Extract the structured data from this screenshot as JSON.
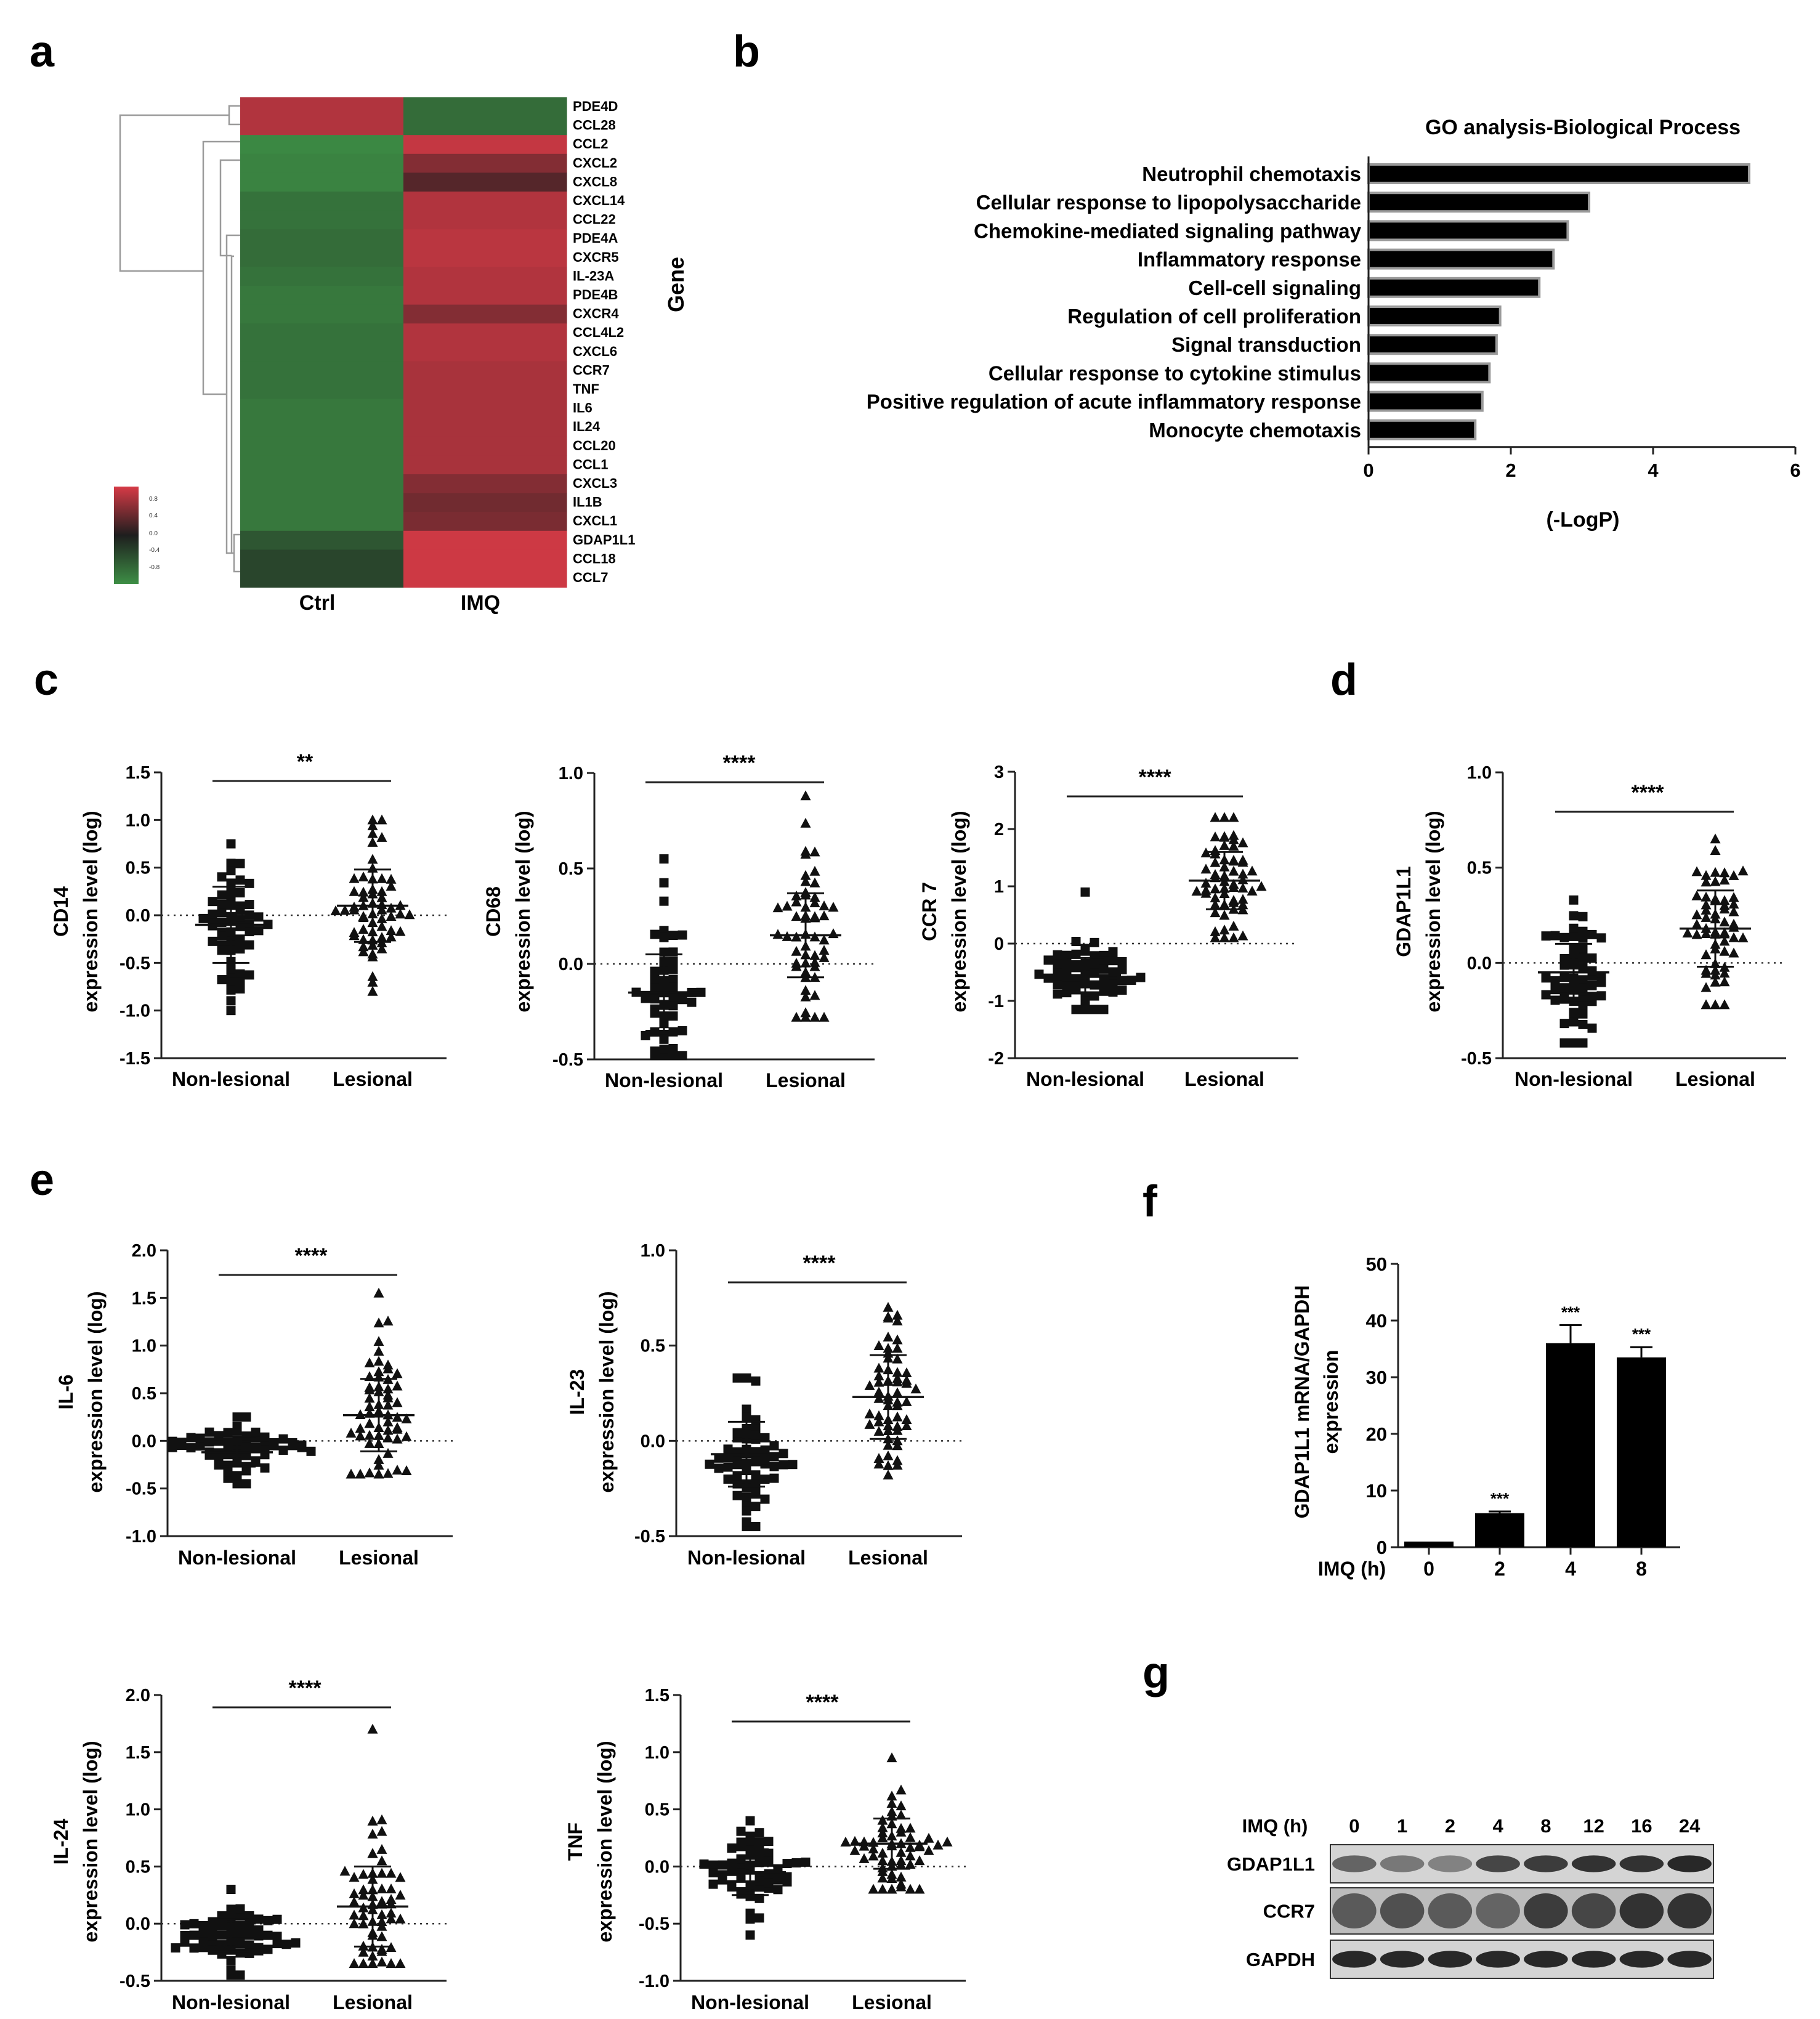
{
  "panel_letters": [
    "a",
    "b",
    "c",
    "d",
    "e",
    "f",
    "g"
  ],
  "colors": {
    "ink": "#111111",
    "heat_high": "#d63a46",
    "heat_mid": "#1e1e1e",
    "heat_low": "#3d8e45"
  },
  "chart_data": [
    {
      "id": "a",
      "type": "heatmap",
      "columns": [
        "Ctrl",
        "IMQ"
      ],
      "rows": [
        "PDE4D",
        "CCL28",
        "CCL2",
        "CXCL2",
        "CXCL8",
        "CXCL14",
        "CCL22",
        "PDE4A",
        "CXCR5",
        "IL-23A",
        "PDE4B",
        "CXCR4",
        "CCL4L2",
        "CXCL6",
        "CCR7",
        "TNF",
        "IL6",
        "IL24",
        "CCL20",
        "CCL1",
        "CXCL3",
        "IL1B",
        "CXCL1",
        "GDAP1L1",
        "CCL18",
        "CCL7"
      ],
      "values": [
        [
          0.8,
          -0.7
        ],
        [
          0.8,
          -0.7
        ],
        [
          -0.95,
          0.9
        ],
        [
          -0.9,
          0.55
        ],
        [
          -0.9,
          0.3
        ],
        [
          -0.75,
          0.8
        ],
        [
          -0.75,
          0.8
        ],
        [
          -0.7,
          0.85
        ],
        [
          -0.7,
          0.85
        ],
        [
          -0.75,
          0.8
        ],
        [
          -0.8,
          0.8
        ],
        [
          -0.8,
          0.55
        ],
        [
          -0.75,
          0.8
        ],
        [
          -0.75,
          0.8
        ],
        [
          -0.75,
          0.75
        ],
        [
          -0.75,
          0.75
        ],
        [
          -0.8,
          0.75
        ],
        [
          -0.8,
          0.75
        ],
        [
          -0.8,
          0.75
        ],
        [
          -0.8,
          0.75
        ],
        [
          -0.8,
          0.55
        ],
        [
          -0.8,
          0.45
        ],
        [
          -0.8,
          0.5
        ],
        [
          -0.5,
          0.95
        ],
        [
          -0.35,
          0.95
        ],
        [
          -0.35,
          0.95
        ]
      ],
      "ylabel": "Gene",
      "legend_ticks": [
        "0.8",
        "0.4",
        "0.0",
        "-0.4",
        "-0.8"
      ]
    },
    {
      "id": "b",
      "type": "bar",
      "title": "GO analysis-Biological Process",
      "categories": [
        "Neutrophil chemotaxis",
        "Cellular response to lipopolysaccharide",
        "Chemokine-mediated signaling pathway",
        "Inflammatory response",
        "Cell-cell signaling",
        "Regulation of cell proliferation",
        "Signal transduction",
        "Cellular response to cytokine stimulus",
        "Positive regulation of acute inflammatory response",
        "Monocyte chemotaxis"
      ],
      "values": [
        5.35,
        3.1,
        2.8,
        2.6,
        2.4,
        1.85,
        1.8,
        1.7,
        1.6,
        1.5
      ],
      "xlabel": "(-LogP)",
      "xlim": [
        0,
        6
      ],
      "xticks": [
        "0",
        "2",
        "4",
        "6"
      ]
    },
    {
      "id": "c1",
      "type": "scatter",
      "panel": "c",
      "ylabel_top": "CD14",
      "ylabel": "expression level (log)",
      "categories": [
        "Non-lesional",
        "Lesional"
      ],
      "ylim": [
        -1.5,
        1.5
      ],
      "yticks": [
        "1.5",
        "1.0",
        "0.5",
        "0.0",
        "-0.5",
        "-1.0",
        "-1.5"
      ],
      "significance": "**",
      "groups": [
        {
          "mean": -0.1,
          "sd": 0.4,
          "n": 60,
          "min": -1.0,
          "max": 0.75
        },
        {
          "mean": 0.1,
          "sd": 0.38,
          "n": 60,
          "min": -0.8,
          "max": 1.0
        }
      ]
    },
    {
      "id": "c2",
      "type": "scatter",
      "panel": "c",
      "ylabel_top": "CD68",
      "ylabel": "expression level (log)",
      "categories": [
        "Non-lesional",
        "Lesional"
      ],
      "ylim": [
        -0.5,
        1.0
      ],
      "yticks": [
        "1.0",
        "0.5",
        "0.0",
        "-0.5"
      ],
      "significance": "****",
      "groups": [
        {
          "mean": -0.15,
          "sd": 0.2,
          "n": 55,
          "min": -0.48,
          "max": 0.55
        },
        {
          "mean": 0.15,
          "sd": 0.22,
          "n": 55,
          "min": -0.28,
          "max": 0.88
        }
      ]
    },
    {
      "id": "c3",
      "type": "scatter",
      "panel": "c",
      "ylabel_top": "CCR 7",
      "ylabel": "expression level (log)",
      "categories": [
        "Non-lesional",
        "Lesional"
      ],
      "ylim": [
        -2,
        3
      ],
      "yticks": [
        "3",
        "2",
        "1",
        "0",
        "-1",
        "-2"
      ],
      "significance": "****",
      "groups": [
        {
          "mean": -0.55,
          "sd": 0.3,
          "n": 60,
          "min": -1.15,
          "max": 0.9
        },
        {
          "mean": 1.1,
          "sd": 0.5,
          "n": 60,
          "min": 0.1,
          "max": 2.2
        }
      ]
    },
    {
      "id": "d",
      "type": "scatter",
      "panel": "d",
      "ylabel_top": "GDAP1L1",
      "ylabel": "expression level (log)",
      "categories": [
        "Non-lesional",
        "Lesional"
      ],
      "ylim": [
        -0.5,
        1.0
      ],
      "yticks": [
        "1.0",
        "0.5",
        "0.0",
        "-0.5"
      ],
      "significance": "****",
      "groups": [
        {
          "mean": -0.05,
          "sd": 0.15,
          "n": 60,
          "min": -0.42,
          "max": 0.33
        },
        {
          "mean": 0.18,
          "sd": 0.2,
          "n": 60,
          "min": -0.22,
          "max": 0.65
        }
      ]
    },
    {
      "id": "e1",
      "type": "scatter",
      "panel": "e",
      "ylabel_top": "IL-6",
      "ylabel": "expression level (log)",
      "categories": [
        "Non-lesional",
        "Lesional"
      ],
      "ylim": [
        -1.0,
        2.0
      ],
      "yticks": [
        "2.0",
        "1.5",
        "1.0",
        "0.5",
        "0.0",
        "-0.5",
        "-1.0"
      ],
      "significance": "****",
      "groups": [
        {
          "mean": -0.12,
          "sd": 0.15,
          "n": 60,
          "min": -0.45,
          "max": 0.25
        },
        {
          "mean": 0.27,
          "sd": 0.38,
          "n": 60,
          "min": -0.35,
          "max": 1.55
        }
      ]
    },
    {
      "id": "e2",
      "type": "scatter",
      "panel": "e",
      "ylabel_top": "IL-23",
      "ylabel": "expression level (log)",
      "categories": [
        "Non-lesional",
        "Lesional"
      ],
      "ylim": [
        -0.5,
        1.0
      ],
      "yticks": [
        "1.0",
        "0.5",
        "0.0",
        "-0.5"
      ],
      "significance": "****",
      "groups": [
        {
          "mean": -0.07,
          "sd": 0.17,
          "n": 60,
          "min": -0.45,
          "max": 0.33
        },
        {
          "mean": 0.23,
          "sd": 0.22,
          "n": 60,
          "min": -0.18,
          "max": 0.7
        }
      ]
    },
    {
      "id": "e3",
      "type": "scatter",
      "panel": "e",
      "ylabel_top": "IL-24",
      "ylabel": "expression level (log)",
      "categories": [
        "Non-lesional",
        "Lesional"
      ],
      "ylim": [
        -0.5,
        2.0
      ],
      "yticks": [
        "2.0",
        "1.5",
        "1.0",
        "0.5",
        "0.0",
        "-0.5"
      ],
      "significance": "****",
      "groups": [
        {
          "mean": -0.1,
          "sd": 0.14,
          "n": 60,
          "min": -0.45,
          "max": 0.3
        },
        {
          "mean": 0.15,
          "sd": 0.35,
          "n": 60,
          "min": -0.35,
          "max": 1.7
        }
      ]
    },
    {
      "id": "e4",
      "type": "scatter",
      "panel": "e",
      "ylabel_top": "TNF",
      "ylabel": "expression level (log)",
      "categories": [
        "Non-lesional",
        "Lesional"
      ],
      "ylim": [
        -1.0,
        1.5
      ],
      "yticks": [
        "1.5",
        "1.0",
        "0.5",
        "0.0",
        "-0.5",
        "-1.0"
      ],
      "significance": "****",
      "groups": [
        {
          "mean": -0.05,
          "sd": 0.2,
          "n": 60,
          "min": -0.6,
          "max": 0.4
        },
        {
          "mean": 0.2,
          "sd": 0.22,
          "n": 60,
          "min": -0.2,
          "max": 0.95
        }
      ]
    },
    {
      "id": "f",
      "type": "bar",
      "ylabel_top": "GDAP1L1 mRNA/GAPDH",
      "ylabel": "expression",
      "xlabel": "IMQ (h)",
      "categories": [
        "0",
        "2",
        "4",
        "8"
      ],
      "values": [
        1,
        6,
        36,
        33.5
      ],
      "errors": [
        0.1,
        0.3,
        3.2,
        1.8
      ],
      "annotations": [
        "",
        "***",
        "***",
        "***"
      ],
      "ylim": [
        0,
        50
      ],
      "yticks": [
        "50",
        "40",
        "30",
        "20",
        "10",
        "0"
      ]
    },
    {
      "id": "g",
      "type": "blot",
      "header_label": "IMQ (h)",
      "lanes": [
        "0",
        "1",
        "2",
        "4",
        "8",
        "12",
        "16",
        "24"
      ],
      "rows": [
        {
          "label": "GDAP1L1",
          "intensity": [
            0.55,
            0.45,
            0.4,
            0.7,
            0.75,
            0.8,
            0.8,
            0.85
          ]
        },
        {
          "label": "CCR7",
          "intensity": [
            0.6,
            0.65,
            0.6,
            0.55,
            0.75,
            0.7,
            0.8,
            0.8
          ]
        },
        {
          "label": "GAPDH",
          "intensity": [
            0.85,
            0.85,
            0.85,
            0.85,
            0.85,
            0.85,
            0.85,
            0.85
          ]
        }
      ]
    }
  ]
}
